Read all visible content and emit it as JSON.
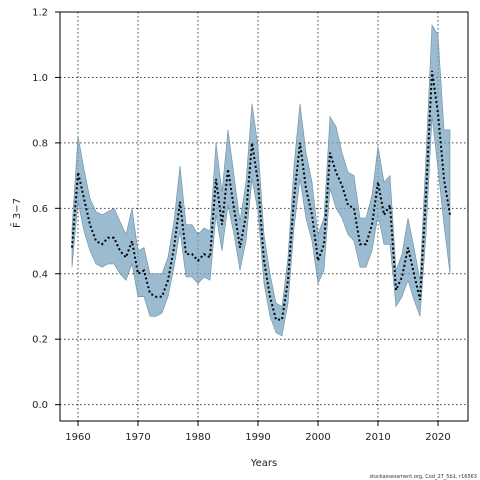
{
  "chart_data": {
    "type": "line",
    "xlabel": "Years",
    "ylabel": "F̄ 3−7",
    "xlim": [
      1957,
      2025
    ],
    "ylim": [
      -0.05,
      1.2
    ],
    "x_ticks": [
      1960,
      1970,
      1980,
      1990,
      2000,
      2010,
      2020
    ],
    "y_ticks": [
      0.0,
      0.2,
      0.4,
      0.6,
      0.8,
      1.0,
      1.2
    ],
    "y_tick_labels": [
      "0.0",
      "0.2",
      "0.4",
      "0.6",
      "0.8",
      "1.0",
      "1.2"
    ],
    "grid": true,
    "colors": {
      "band": "#7aa6c0",
      "band_edge": "#6d8ea3",
      "line": "#000000",
      "grid": "#444444"
    },
    "series": [
      {
        "x": [
          1959,
          1960,
          1961,
          1962,
          1963,
          1964,
          1965,
          1966,
          1967,
          1968,
          1969,
          1970,
          1971,
          1972,
          1973,
          1974,
          1975,
          1976,
          1977,
          1978,
          1979,
          1980,
          1981,
          1982,
          1983,
          1984,
          1985,
          1986,
          1987,
          1988,
          1989,
          1990,
          1991,
          1992,
          1993,
          1994,
          1995,
          1996,
          1997,
          1998,
          1999,
          2000,
          2001,
          2002,
          2003,
          2004,
          2005,
          2006,
          2007,
          2008,
          2009,
          2010,
          2011,
          2012,
          2013,
          2014,
          2015,
          2016,
          2017,
          2018,
          2019,
          2020,
          2021,
          2022
        ],
        "y": [
          0.48,
          0.71,
          0.63,
          0.55,
          0.5,
          0.49,
          0.51,
          0.51,
          0.47,
          0.45,
          0.5,
          0.4,
          0.41,
          0.34,
          0.33,
          0.33,
          0.38,
          0.48,
          0.62,
          0.46,
          0.46,
          0.44,
          0.46,
          0.45,
          0.69,
          0.55,
          0.72,
          0.6,
          0.48,
          0.58,
          0.8,
          0.68,
          0.44,
          0.33,
          0.26,
          0.26,
          0.38,
          0.63,
          0.8,
          0.66,
          0.58,
          0.44,
          0.49,
          0.77,
          0.71,
          0.67,
          0.61,
          0.6,
          0.49,
          0.49,
          0.55,
          0.68,
          0.58,
          0.61,
          0.35,
          0.39,
          0.48,
          0.4,
          0.32,
          0.64,
          1.02,
          0.89,
          0.69,
          0.58
        ],
        "lower": [
          0.42,
          0.62,
          0.53,
          0.47,
          0.43,
          0.42,
          0.43,
          0.43,
          0.4,
          0.38,
          0.43,
          0.33,
          0.33,
          0.27,
          0.27,
          0.28,
          0.33,
          0.42,
          0.53,
          0.39,
          0.39,
          0.37,
          0.39,
          0.38,
          0.58,
          0.47,
          0.61,
          0.52,
          0.41,
          0.5,
          0.69,
          0.59,
          0.37,
          0.27,
          0.22,
          0.21,
          0.31,
          0.54,
          0.69,
          0.57,
          0.5,
          0.37,
          0.41,
          0.66,
          0.6,
          0.57,
          0.52,
          0.5,
          0.42,
          0.42,
          0.47,
          0.58,
          0.49,
          0.49,
          0.3,
          0.33,
          0.38,
          0.32,
          0.27,
          0.52,
          0.88,
          0.72,
          0.55,
          0.4
        ],
        "upper": [
          0.54,
          0.82,
          0.72,
          0.63,
          0.59,
          0.58,
          0.59,
          0.6,
          0.56,
          0.52,
          0.6,
          0.47,
          0.48,
          0.4,
          0.4,
          0.4,
          0.45,
          0.56,
          0.73,
          0.55,
          0.55,
          0.52,
          0.54,
          0.53,
          0.8,
          0.65,
          0.84,
          0.7,
          0.56,
          0.68,
          0.92,
          0.79,
          0.52,
          0.4,
          0.31,
          0.3,
          0.45,
          0.73,
          0.92,
          0.77,
          0.68,
          0.52,
          0.57,
          0.88,
          0.85,
          0.77,
          0.71,
          0.7,
          0.57,
          0.57,
          0.64,
          0.79,
          0.68,
          0.7,
          0.41,
          0.46,
          0.57,
          0.48,
          0.38,
          0.76,
          1.16,
          1.13,
          0.84,
          0.84
        ]
      }
    ]
  },
  "footer": "stockassessment.org, Cod_27_5b1, r16563"
}
